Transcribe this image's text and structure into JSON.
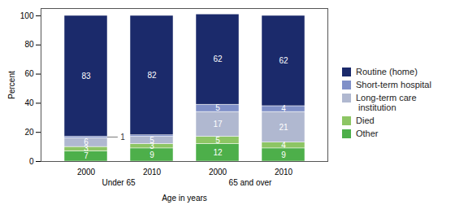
{
  "chart_data": {
    "type": "bar",
    "stacked": true,
    "data_labels": true,
    "legend": "right",
    "xlabel": "Age in years",
    "ylabel": "Percent",
    "categories": [
      "2000",
      "2010",
      "2000",
      "2010"
    ],
    "group_labels": [
      "Under 65",
      "Under 65",
      "65 and over",
      "65 and over"
    ],
    "ylim": [
      0,
      105
    ],
    "yticks": [
      0,
      20,
      40,
      60,
      80,
      100
    ],
    "series": [
      {
        "name": "Other",
        "color": "#4daf4a",
        "values": [
          7,
          9,
          12,
          9
        ]
      },
      {
        "name": "Died",
        "color": "#8dc564",
        "values": [
          3,
          3,
          5,
          4
        ]
      },
      {
        "name": "Long-term care\n institution",
        "color": "#b0b8d0",
        "values": [
          6,
          5,
          17,
          21
        ]
      },
      {
        "name": "Short-term hospital",
        "color": "#8090c8",
        "values": [
          1,
          1,
          5,
          4
        ],
        "value_labels": [
          "1",
          null,
          "5",
          "4"
        ]
      },
      {
        "name": "Routine (home)",
        "color": "#1b2a6b",
        "values": [
          83,
          82,
          62,
          62
        ]
      }
    ]
  }
}
